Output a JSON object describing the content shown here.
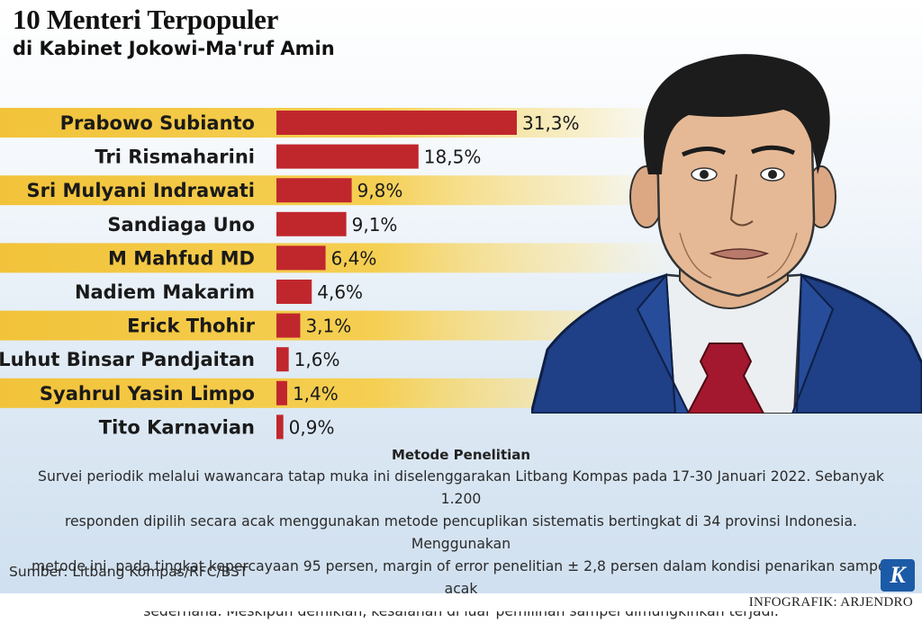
{
  "header": {
    "title": "10 Menteri Terpopuler",
    "subtitle": "di Kabinet Jokowi-Ma'ruf Amin"
  },
  "chart_data": {
    "type": "bar",
    "orientation": "horizontal",
    "title": "10 Menteri Terpopuler",
    "subtitle": "di Kabinet Jokowi-Ma'ruf Amin",
    "categories": [
      "Prabowo Subianto",
      "Tri Rismaharini",
      "Sri Mulyani Indrawati",
      "Sandiaga Uno",
      "M Mahfud MD",
      "Nadiem Makarim",
      "Erick Thohir",
      "Luhut Binsar Pandjaitan",
      "Syahrul Yasin Limpo",
      "Tito Karnavian"
    ],
    "values": [
      31.3,
      18.5,
      9.8,
      9.1,
      6.4,
      4.6,
      3.1,
      1.6,
      1.4,
      0.9
    ],
    "value_labels": [
      "31,3%",
      "18,5%",
      "9,8%",
      "9,1%",
      "6,4%",
      "4,6%",
      "3,1%",
      "1,6%",
      "1,4%",
      "0,9%"
    ],
    "unit": "%",
    "xlim": [
      0,
      31.3
    ],
    "grid": false,
    "legend": "none",
    "bar_color": "#c0272d",
    "stripe_color": "#f2c33a"
  },
  "method": {
    "title": "Metode Penelitian",
    "lines": [
      "Survei periodik melalui wawancara tatap muka ini diselenggarakan Litbang Kompas pada 17-30 Januari 2022. Sebanyak 1.200",
      "responden dipilih secara acak menggunakan metode pencuplikan sistematis bertingkat di 34 provinsi Indonesia. Menggunakan",
      "metode ini, pada tingkat kepercayaan 95 persen, margin of error penelitian ± 2,8 persen dalam kondisi penarikan sampel acak",
      "sederhana. Meskipun demikian, kesalahan di luar pemilihan sampel dimungkinkan terjadi."
    ]
  },
  "source": "Sumber: Litbang Kompas/RFC/BST",
  "logo_letter": "K",
  "credit": "INFOGRAFIK: ARJENDRO",
  "colors": {
    "bar": "#c0272d",
    "stripe": "#f2c33a",
    "suit": "#1f3f86",
    "tie": "#a3182e",
    "logo": "#1b5aa6"
  }
}
